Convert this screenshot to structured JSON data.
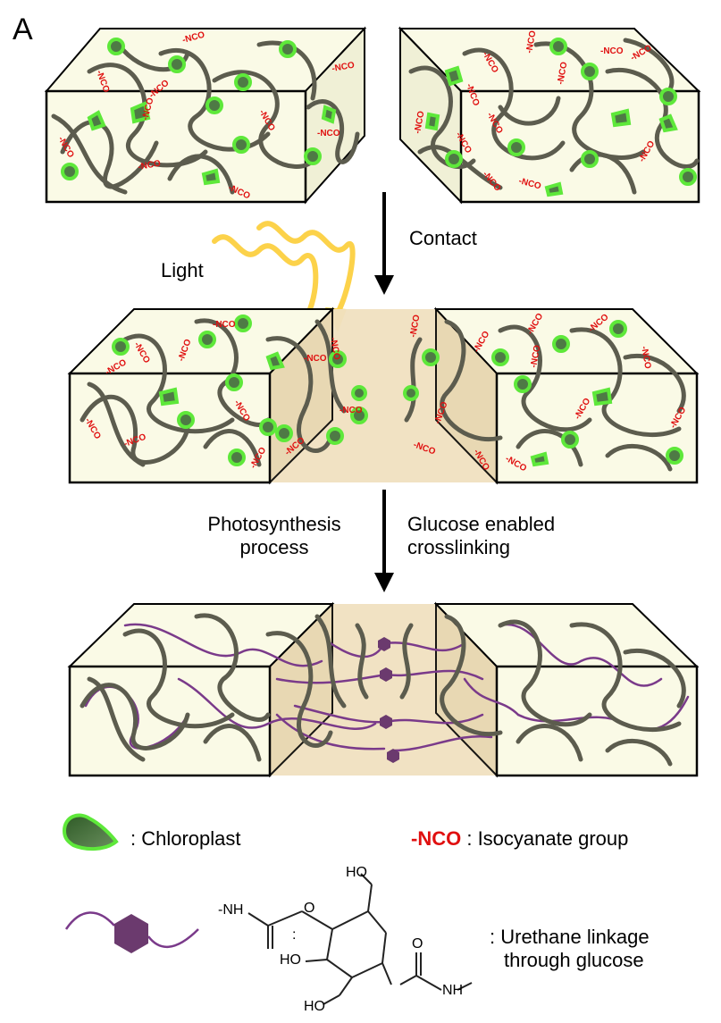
{
  "panel_label": "A",
  "labels": {
    "light": "Light",
    "contact": "Contact",
    "photosynthesis_line1": "Photosynthesis",
    "photosynthesis_line2": "process",
    "glucose_line1": "Glucose enabled",
    "glucose_line2": "crosslinking"
  },
  "group_text": "-NCO",
  "legend": {
    "chloroplast": ": Chloroplast",
    "nco_symbol": "-NCO",
    "nco_desc": ": Isocyanate group",
    "urethane_line1": ": Urethane linkage",
    "urethane_line2": "through glucose"
  },
  "molecule": {
    "nh_left": "-NH",
    "colon": ":",
    "o_left": "O",
    "ho_top": "HO",
    "ho_mid": "HO",
    "ho_bottom": "HO",
    "nh_right": "NH",
    "o_right": "O"
  },
  "colors": {
    "block_fill": "#fafae6",
    "chain": "#5c5c4e",
    "chloroplast_outer": "#5ee83a",
    "chloroplast_inner": "#4e7a45",
    "nco": "#e01010",
    "light_wave": "#fcd24a",
    "contact_zone": "#f0e0c0",
    "crosslink": "#7a3a8a",
    "glucose": "#6b3a6e"
  }
}
